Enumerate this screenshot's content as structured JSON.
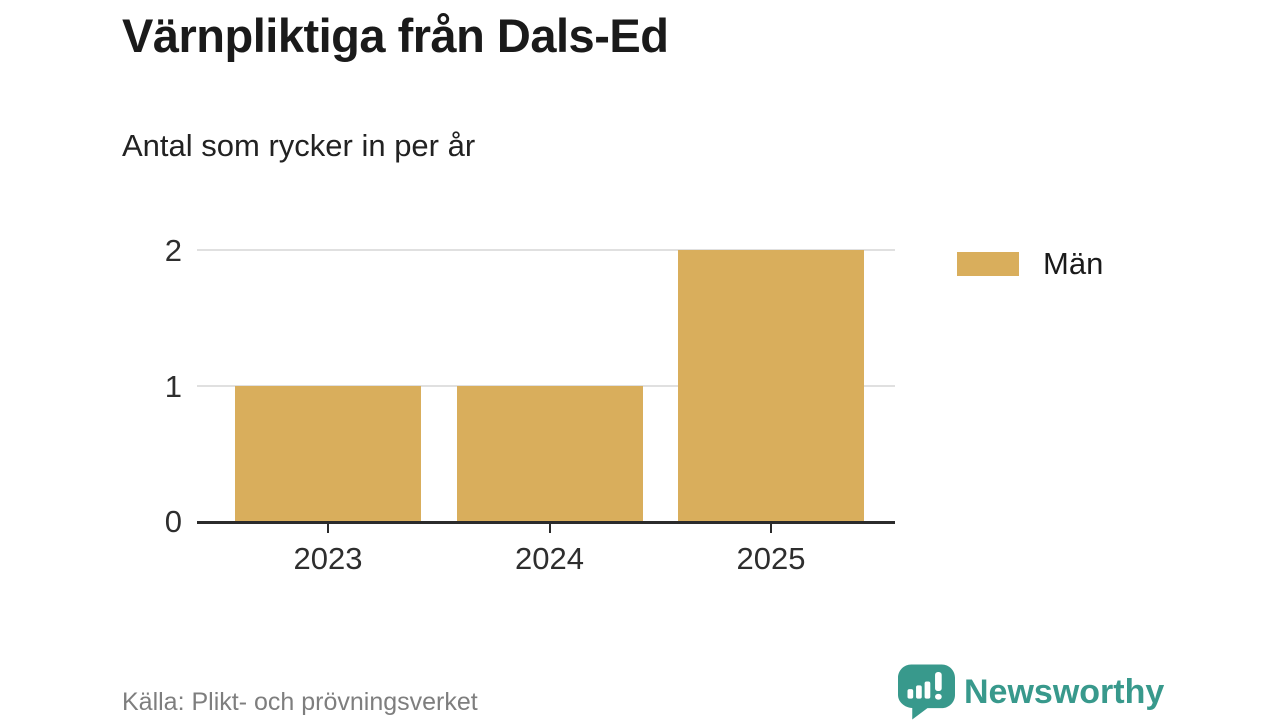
{
  "title": "Värnpliktiga från Dals-Ed",
  "subtitle": "Antal som rycker in per år",
  "source": "Källa: Plikt- och prövningsverket",
  "brand": {
    "name": "Newsworthy",
    "color": "#38998C",
    "icon": "newsworthy-bubble-barchart-icon"
  },
  "legend": [
    {
      "label": "Män",
      "color": "#D9AE5C"
    }
  ],
  "colors": {
    "bar": "#D9AE5C",
    "gridline": "#e0e0e0",
    "axis_line": "#2b2b2b",
    "axis_text": "#2e2e2e",
    "source_text": "#7e7e7e",
    "title_text": "#1a1a1a",
    "background": "#ffffff"
  },
  "chart_data": {
    "type": "bar",
    "categories": [
      "2023",
      "2024",
      "2025"
    ],
    "series": [
      {
        "name": "Män",
        "values": [
          1,
          1,
          2
        ],
        "color": "#D9AE5C"
      }
    ],
    "title": "Värnpliktiga från Dals-Ed",
    "subtitle": "Antal som rycker in per år",
    "xlabel": "",
    "ylabel": "",
    "yticks": [
      0,
      1,
      2
    ],
    "ylim": [
      0,
      2
    ],
    "grid": true,
    "legend_position": "right",
    "source": "Källa: Plikt- och prövningsverket"
  }
}
